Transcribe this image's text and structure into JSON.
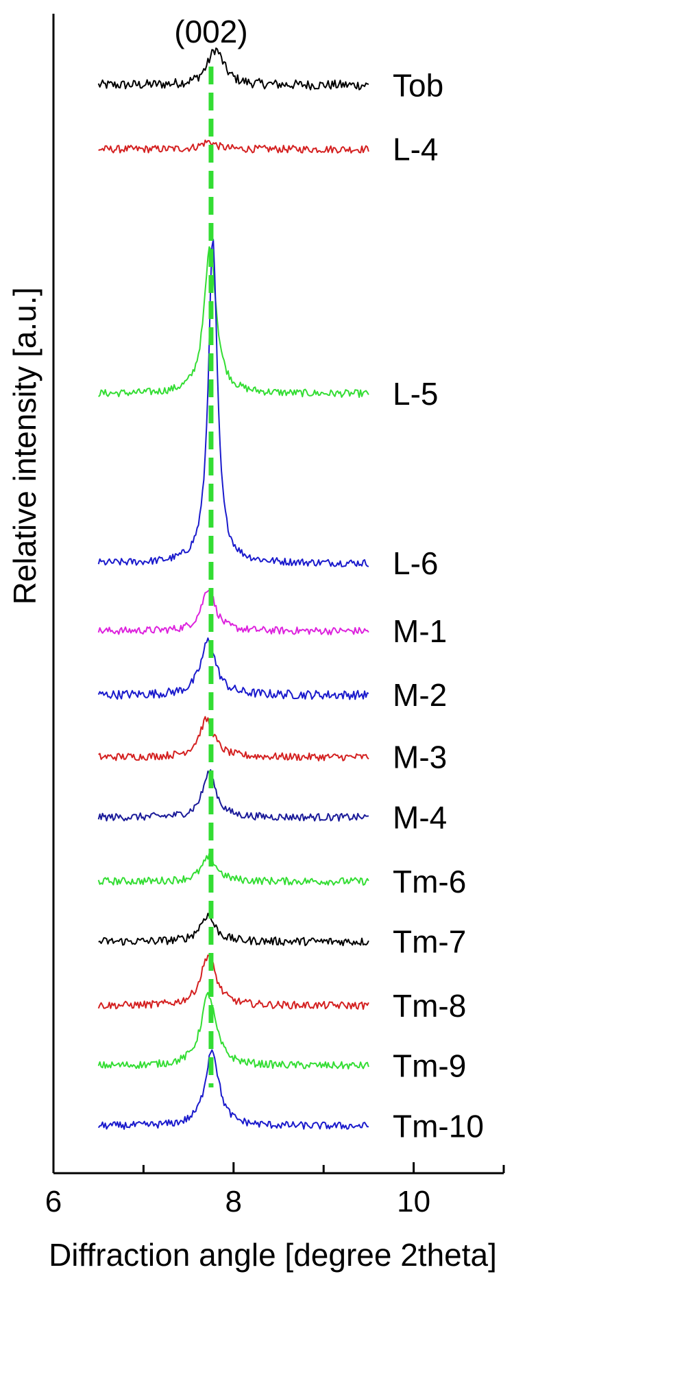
{
  "chart_data": {
    "type": "line",
    "title": "",
    "xlabel": "Diffraction angle [degree 2theta]",
    "ylabel": "Relative intensity [a.u.]",
    "xlim": [
      6,
      11
    ],
    "x_ticks": [
      6,
      8,
      10
    ],
    "x_tick_labels": [
      "6",
      "8",
      "10"
    ],
    "y_axis_ticks_shown": false,
    "x_range_measured": [
      6.5,
      9.5
    ],
    "reference_line": {
      "label": "(002)",
      "x": 7.75,
      "color": "#33dd33",
      "style": "dashed"
    },
    "series": [
      {
        "name": "Tob",
        "color": "#000000",
        "baseline": 17.0,
        "peak_center": 7.8,
        "peak_height": 0.95,
        "peak_width": 0.11,
        "noise": 0.13
      },
      {
        "name": "L-4",
        "color": "#d42020",
        "baseline": 15.3,
        "peak_center": 7.72,
        "peak_height": 0.2,
        "peak_width": 0.1,
        "noise": 0.1
      },
      {
        "name": "L-5",
        "color": "#33dd33",
        "baseline": 8.8,
        "peak_center": 7.74,
        "peak_height": 3.95,
        "peak_width": 0.08,
        "noise": 0.1
      },
      {
        "name": "L-6",
        "color": "#1a1acc",
        "baseline": 4.3,
        "peak_center": 7.77,
        "peak_height": 8.6,
        "peak_width": 0.06,
        "noise": 0.1
      },
      {
        "name": "M-1",
        "color": "#dd22dd",
        "baseline": 2.5,
        "peak_center": 7.72,
        "peak_height": 1.15,
        "peak_width": 0.09,
        "noise": 0.1
      },
      {
        "name": "M-2",
        "color": "#1a1acc",
        "baseline": 0.8,
        "peak_center": 7.72,
        "peak_height": 1.45,
        "peak_width": 0.1,
        "noise": 0.12
      },
      {
        "name": "M-3",
        "color": "#d42020",
        "baseline": -0.85,
        "peak_center": 7.7,
        "peak_height": 1.0,
        "peak_width": 0.1,
        "noise": 0.1
      },
      {
        "name": "M-4",
        "color": "#1a1a99",
        "baseline": -2.45,
        "peak_center": 7.73,
        "peak_height": 1.2,
        "peak_width": 0.09,
        "noise": 0.1
      },
      {
        "name": "Tm-6",
        "color": "#33dd33",
        "baseline": -4.15,
        "peak_center": 7.73,
        "peak_height": 0.65,
        "peak_width": 0.1,
        "noise": 0.1
      },
      {
        "name": "Tm-7",
        "color": "#000000",
        "baseline": -5.75,
        "peak_center": 7.71,
        "peak_height": 0.7,
        "peak_width": 0.1,
        "noise": 0.11
      },
      {
        "name": "Tm-8",
        "color": "#d42020",
        "baseline": -7.45,
        "peak_center": 7.72,
        "peak_height": 1.35,
        "peak_width": 0.1,
        "noise": 0.1
      },
      {
        "name": "Tm-9",
        "color": "#33dd33",
        "baseline": -9.05,
        "peak_center": 7.72,
        "peak_height": 1.9,
        "peak_width": 0.1,
        "noise": 0.1
      },
      {
        "name": "Tm-10",
        "color": "#1a1acc",
        "baseline": -10.65,
        "peak_center": 7.76,
        "peak_height": 2.05,
        "peak_width": 0.09,
        "noise": 0.1
      }
    ]
  }
}
